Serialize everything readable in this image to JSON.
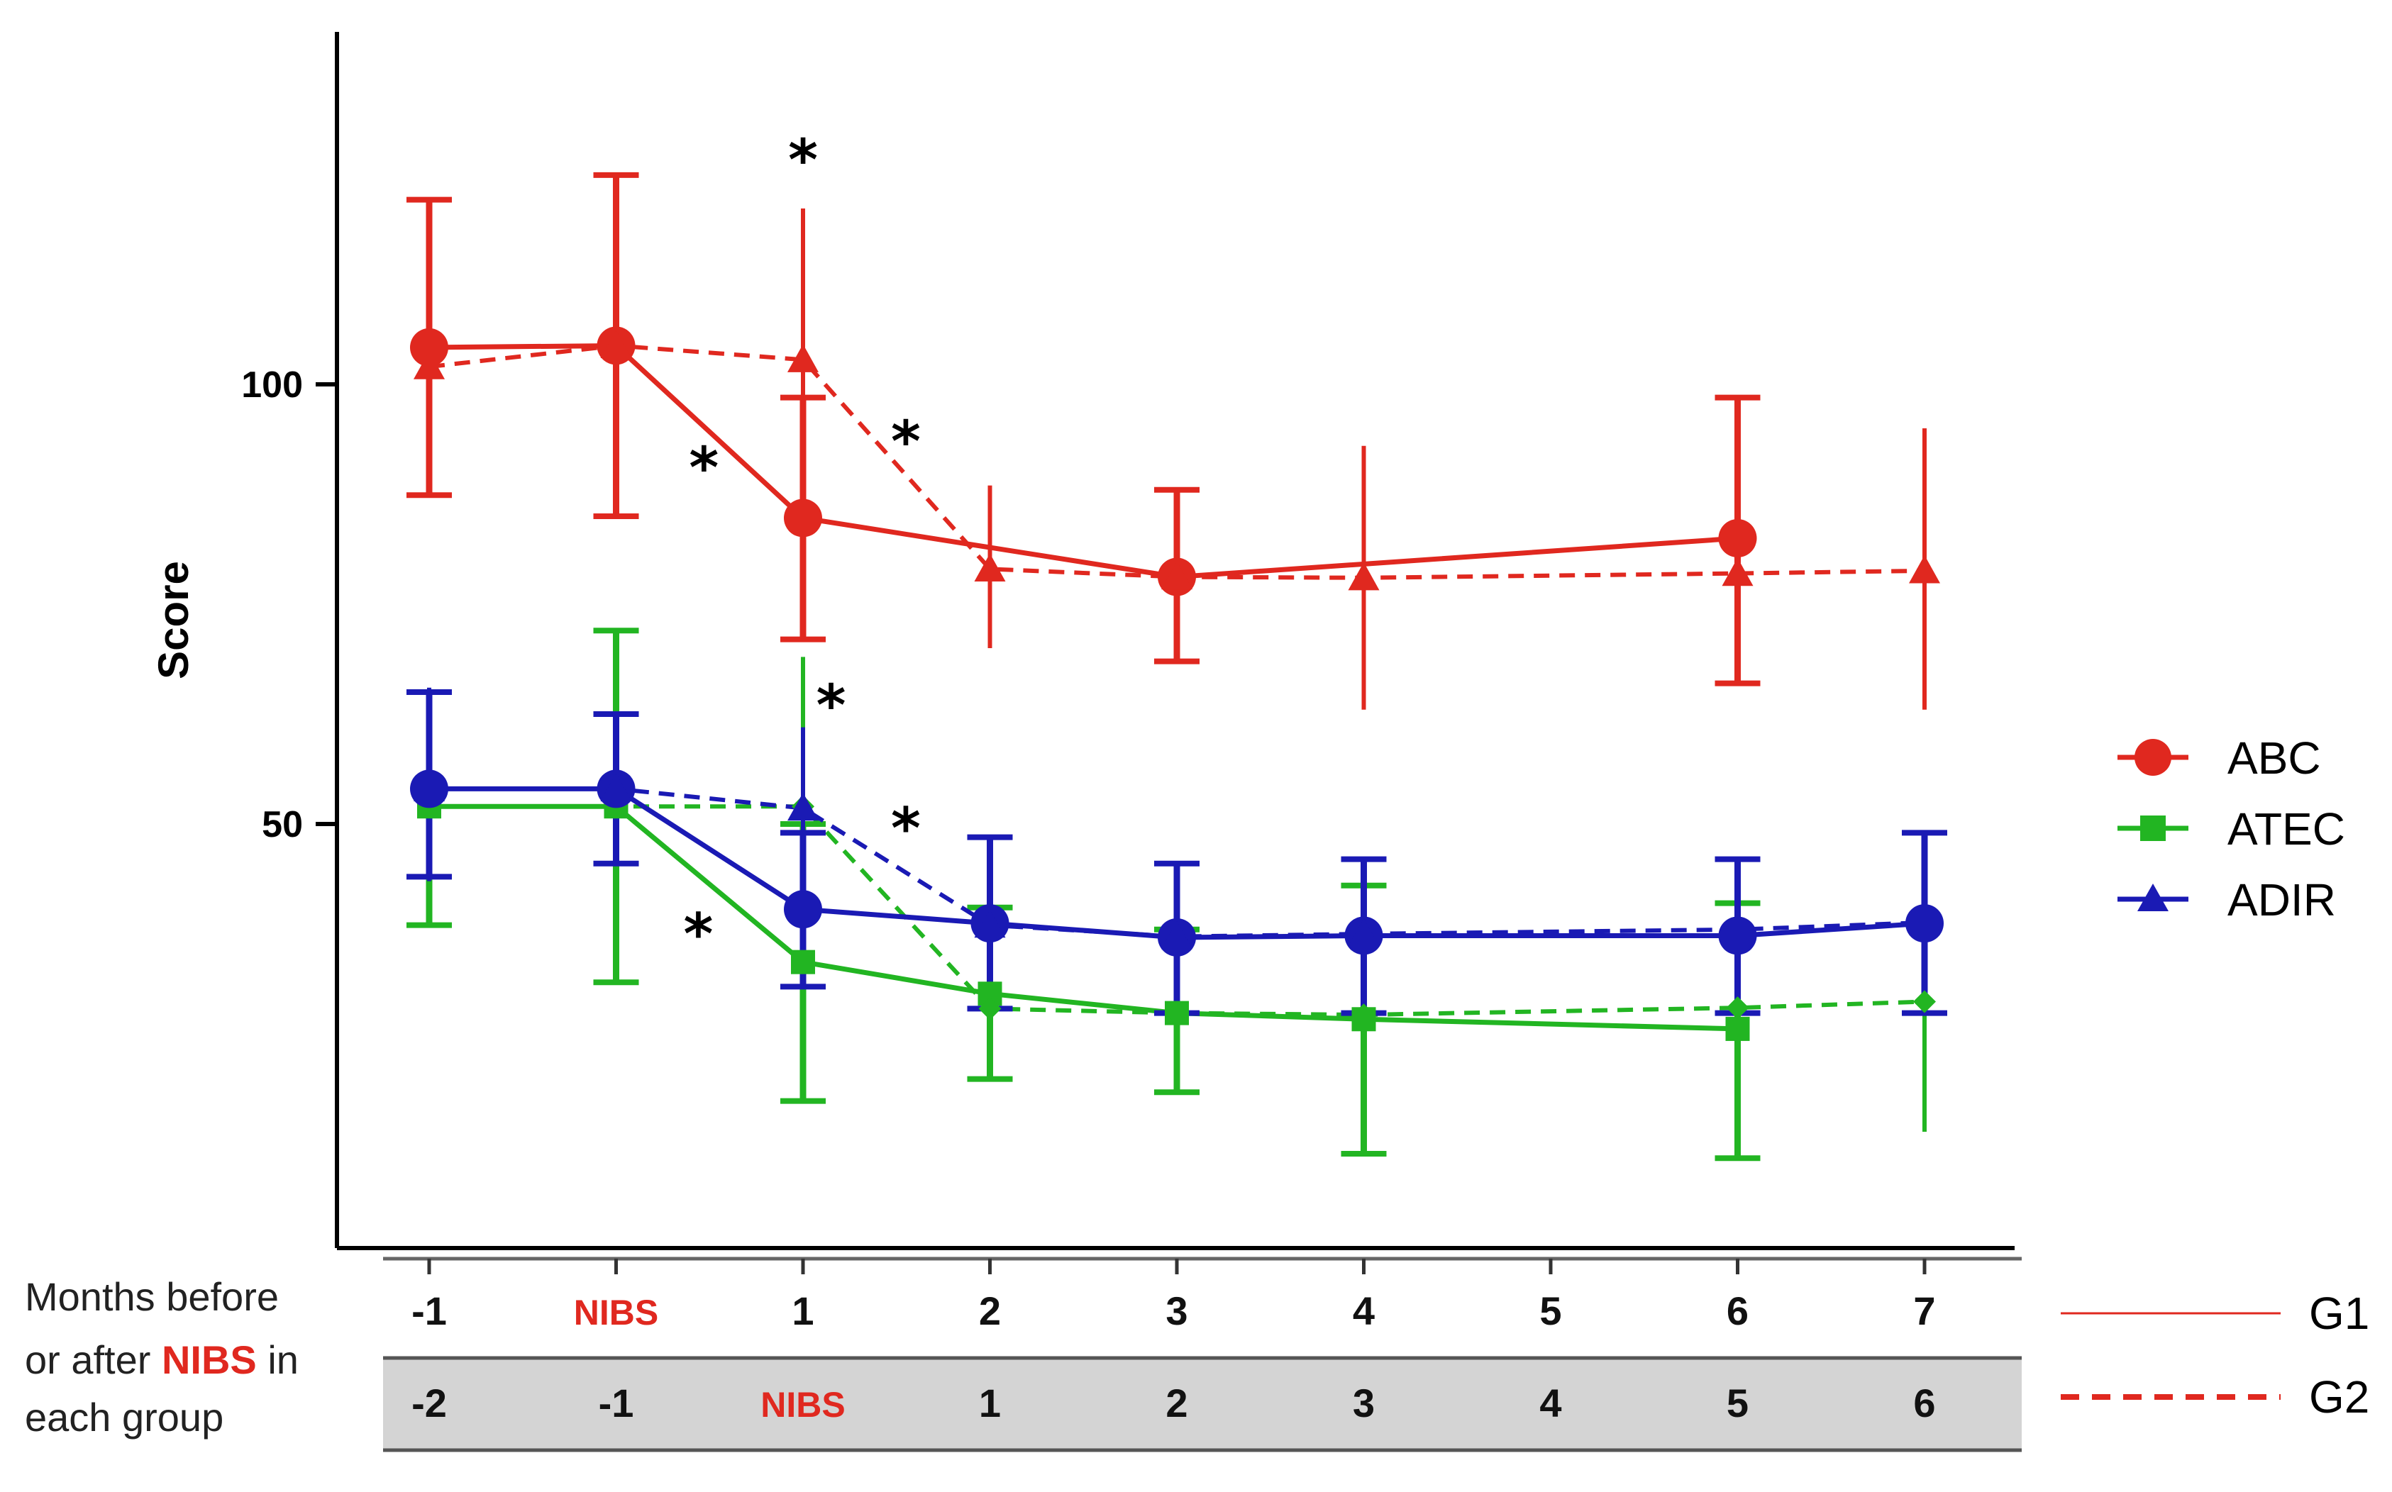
{
  "chart_data": {
    "type": "line",
    "ylabel": "Score",
    "ylim": [
      0,
      140
    ],
    "yticks": [
      50,
      100
    ],
    "x": [
      0,
      1,
      2,
      3,
      4,
      5,
      6,
      7,
      8
    ],
    "group_axes": [
      {
        "name": "G1",
        "labels": [
          "-1",
          "NIBS",
          "1",
          "2",
          "3",
          "4",
          "5",
          "6",
          "7"
        ]
      },
      {
        "name": "G2",
        "labels": [
          "-2",
          "-1",
          "NIBS",
          "1",
          "2",
          "3",
          "4",
          "5",
          "6"
        ]
      }
    ],
    "x_description": [
      "Months before",
      "or after ",
      "NIBS",
      " in",
      "each group"
    ],
    "series": [
      {
        "name": "ABC",
        "group": "G1",
        "color": "#e0281f",
        "marker": "circle",
        "dash": false,
        "points": [
          {
            "x": 0,
            "y": 104.2,
            "lo": 87.4,
            "hi": 121.0
          },
          {
            "x": 1,
            "y": 104.4,
            "lo": 85.0,
            "hi": 123.8
          },
          {
            "x": 2,
            "y": 84.8,
            "lo": 71.0,
            "hi": 98.5
          },
          {
            "x": 4,
            "y": 78.1,
            "lo": 68.5,
            "hi": 88.0
          },
          {
            "x": 7,
            "y": 82.5,
            "lo": 66.0,
            "hi": 98.5
          }
        ]
      },
      {
        "name": "ABC",
        "group": "G2",
        "color": "#e0281f",
        "marker": "triangle",
        "dash": true,
        "points": [
          {
            "x": 0,
            "y": 102.0
          },
          {
            "x": 1,
            "y": 104.4
          },
          {
            "x": 2,
            "y": 102.8,
            "lo": 86.0,
            "hi": 120.0
          },
          {
            "x": 3,
            "y": 79.0,
            "lo": 70.0,
            "hi": 88.5
          },
          {
            "x": 4,
            "y": 78.1
          },
          {
            "x": 5,
            "y": 78.0,
            "lo": 63.0,
            "hi": 93.0
          },
          {
            "x": 7,
            "y": 78.5
          },
          {
            "x": 8,
            "y": 78.8,
            "lo": 63.0,
            "hi": 95.0
          }
        ]
      },
      {
        "name": "ATEC",
        "group": "G1",
        "color": "#22b522",
        "marker": "square",
        "dash": false,
        "points": [
          {
            "x": 0,
            "y": 52.0,
            "lo": 38.5,
            "hi": 65.0
          },
          {
            "x": 1,
            "y": 52.0,
            "lo": 32.0,
            "hi": 72.0
          },
          {
            "x": 2,
            "y": 34.3,
            "lo": 18.5,
            "hi": 50.0
          },
          {
            "x": 3,
            "y": 30.7,
            "lo": 21.0,
            "hi": 40.5
          },
          {
            "x": 4,
            "y": 28.5,
            "lo": 19.5,
            "hi": 38.0
          },
          {
            "x": 5,
            "y": 27.8,
            "lo": 12.5,
            "hi": 43.0
          },
          {
            "x": 7,
            "y": 26.7,
            "lo": 12.0,
            "hi": 41.0
          }
        ]
      },
      {
        "name": "ATEC",
        "group": "G2",
        "color": "#22b522",
        "marker": "diamond",
        "dash": true,
        "points": [
          {
            "x": 0,
            "y": 52.0
          },
          {
            "x": 1,
            "y": 52.0
          },
          {
            "x": 2,
            "y": 52.0,
            "lo": 35.0,
            "hi": 69.0
          },
          {
            "x": 3,
            "y": 29.0
          },
          {
            "x": 4,
            "y": 28.5
          },
          {
            "x": 5,
            "y": 28.3
          },
          {
            "x": 7,
            "y": 29.1
          },
          {
            "x": 8,
            "y": 29.8,
            "lo": 15.0,
            "hi": 44.5
          }
        ]
      },
      {
        "name": "ADIR",
        "group": "G1",
        "color": "#1a1ab4",
        "marker": "circle",
        "dash": false,
        "points": [
          {
            "x": 0,
            "y": 54.0,
            "lo": 44.0,
            "hi": 65.0
          },
          {
            "x": 1,
            "y": 54.0,
            "lo": 45.5,
            "hi": 62.5
          },
          {
            "x": 2,
            "y": 40.3,
            "lo": 31.5,
            "hi": 49.0
          },
          {
            "x": 3,
            "y": 38.7,
            "lo": 29.0,
            "hi": 48.5
          },
          {
            "x": 4,
            "y": 37.1,
            "lo": 28.5,
            "hi": 45.5
          },
          {
            "x": 5,
            "y": 37.3,
            "lo": 28.5,
            "hi": 46.0
          },
          {
            "x": 7,
            "y": 37.3,
            "lo": 28.5,
            "hi": 46.0
          },
          {
            "x": 8,
            "y": 38.7,
            "lo": 28.5,
            "hi": 49.0
          }
        ]
      },
      {
        "name": "ADIR",
        "group": "G2",
        "color": "#1a1ab4",
        "marker": "triangle",
        "dash": true,
        "points": [
          {
            "x": 0,
            "y": 54.0,
            "lo": 43.5,
            "hi": 65.5
          },
          {
            "x": 1,
            "y": 54.0,
            "lo": 45.5,
            "hi": 62.5
          },
          {
            "x": 2,
            "y": 51.8,
            "lo": 42.0,
            "hi": 61.0
          },
          {
            "x": 3,
            "y": 38.5
          },
          {
            "x": 4,
            "y": 37.2
          },
          {
            "x": 5,
            "y": 37.5
          },
          {
            "x": 7,
            "y": 38.0
          },
          {
            "x": 8,
            "y": 38.8
          }
        ]
      }
    ],
    "annotations": [
      {
        "text": "*",
        "x": 2.0,
        "y": 126
      },
      {
        "text": "*",
        "x": 1.47,
        "y": 91
      },
      {
        "text": "*",
        "x": 2.55,
        "y": 94
      },
      {
        "text": "*",
        "x": 2.15,
        "y": 64
      },
      {
        "text": "*",
        "x": 2.55,
        "y": 50
      },
      {
        "text": "*",
        "x": 1.44,
        "y": 38
      }
    ],
    "legend": {
      "position": "right",
      "markers": [
        {
          "label": "ABC",
          "color": "#e0281f",
          "symbol": "circle"
        },
        {
          "label": "ATEC",
          "color": "#22b522",
          "symbol": "square"
        },
        {
          "label": "ADIR",
          "color": "#1a1ab4",
          "symbol": "triangle"
        }
      ],
      "lines": [
        {
          "label": "G1",
          "color": "#e0281f",
          "dash": false
        },
        {
          "label": "G2",
          "color": "#e0281f",
          "dash": true
        }
      ]
    }
  }
}
